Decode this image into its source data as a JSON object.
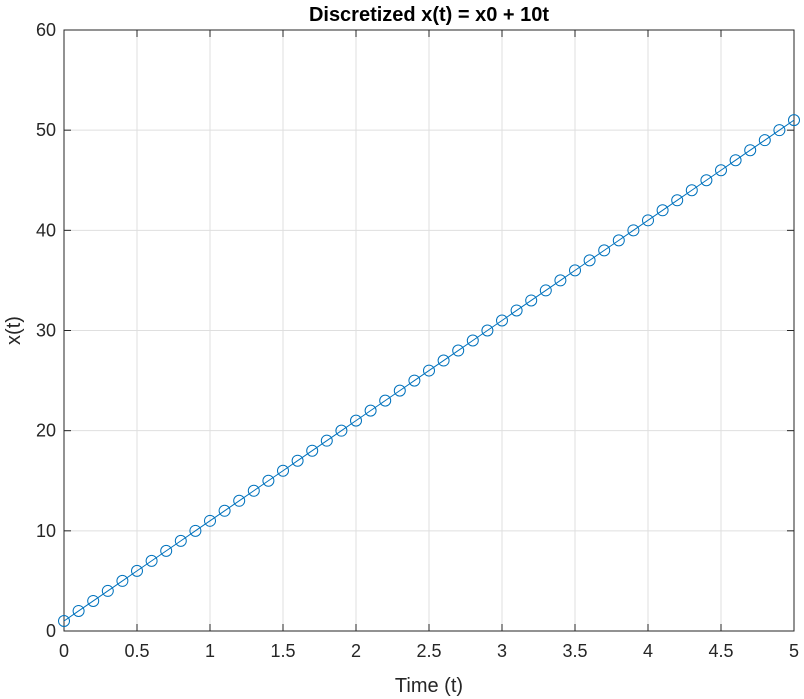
{
  "chart_data": {
    "type": "line",
    "title": "Discretized x(t) = x0 + 10t",
    "xlabel": "Time (t)",
    "ylabel": "x(t)",
    "xlim": [
      0,
      5
    ],
    "ylim": [
      0,
      60
    ],
    "xticks": [
      0,
      0.5,
      1,
      1.5,
      2,
      2.5,
      3,
      3.5,
      4,
      4.5,
      5
    ],
    "xtick_labels": [
      "0",
      "0.5",
      "1",
      "1.5",
      "2",
      "2.5",
      "3",
      "3.5",
      "4",
      "4.5",
      "5"
    ],
    "yticks": [
      0,
      10,
      20,
      30,
      40,
      50,
      60
    ],
    "ytick_labels": [
      "0",
      "10",
      "20",
      "30",
      "40",
      "50",
      "60"
    ],
    "grid": true,
    "marker": "circle",
    "series": [
      {
        "color": "#0072BD",
        "x": [
          0,
          0.1,
          0.2,
          0.3,
          0.4,
          0.5,
          0.6,
          0.7,
          0.8,
          0.9,
          1,
          1.1,
          1.2,
          1.3,
          1.4,
          1.5,
          1.6,
          1.7,
          1.8,
          1.9,
          2,
          2.1,
          2.2,
          2.3,
          2.4,
          2.5,
          2.6,
          2.7,
          2.8,
          2.9,
          3,
          3.1,
          3.2,
          3.3,
          3.4,
          3.5,
          3.6,
          3.7,
          3.8,
          3.9,
          4,
          4.1,
          4.2,
          4.3,
          4.4,
          4.5,
          4.6,
          4.7,
          4.8,
          4.9,
          5
        ],
        "y": [
          1,
          2,
          3,
          4,
          5,
          6,
          7,
          8,
          9,
          10,
          11,
          12,
          13,
          14,
          15,
          16,
          17,
          18,
          19,
          20,
          21,
          22,
          23,
          24,
          25,
          26,
          27,
          28,
          29,
          30,
          31,
          32,
          33,
          34,
          35,
          36,
          37,
          38,
          39,
          40,
          41,
          42,
          43,
          44,
          45,
          46,
          47,
          48,
          49,
          50,
          51
        ]
      }
    ]
  }
}
